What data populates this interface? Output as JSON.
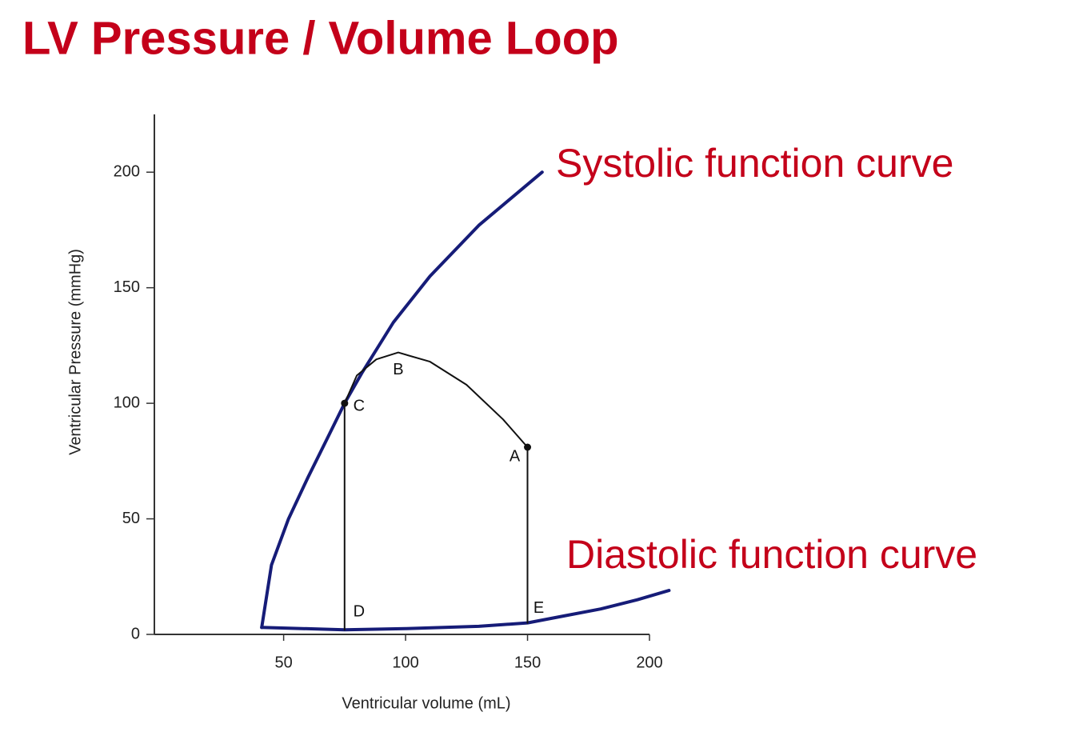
{
  "chart_data": {
    "type": "line",
    "title": "LV Pressure / Volume Loop",
    "x_label": "Ventricular volume (mL)",
    "y_label": "Ventricular Pressure (mmHg)",
    "xlim": [
      -3,
      200
    ],
    "ylim": [
      0,
      225
    ],
    "xticks": [
      50,
      100,
      150,
      200
    ],
    "yticks": [
      0,
      50,
      100,
      150,
      200
    ],
    "series": [
      {
        "name": "Systolic function curve",
        "color": "#161c78",
        "x": [
          41,
          45,
          52,
          60,
          68,
          75,
          82,
          95,
          110,
          130,
          156
        ],
        "values": [
          3,
          30,
          50,
          68,
          85,
          100,
          113,
          135,
          155,
          177,
          200
        ]
      },
      {
        "name": "Diastolic function curve",
        "color": "#161c78",
        "x": [
          41,
          75,
          100,
          130,
          150,
          165,
          180,
          195,
          208
        ],
        "values": [
          3,
          2,
          2.5,
          3.5,
          5,
          8,
          11,
          15,
          19
        ]
      },
      {
        "color": "#111111",
        "x": [
          75,
          80,
          88,
          97,
          110,
          125,
          140,
          150
        ],
        "values": [
          100,
          112,
          119,
          122,
          118,
          108,
          93,
          81
        ]
      },
      {
        "color": "#111111",
        "x": [
          75,
          75
        ],
        "values": [
          100,
          2
        ]
      },
      {
        "color": "#111111",
        "x": [
          150,
          150
        ],
        "values": [
          81,
          5
        ]
      }
    ],
    "annotations": [
      {
        "label": "A",
        "x": 150,
        "y": 81,
        "marker": true
      },
      {
        "label": "B",
        "x": 97,
        "y": 122,
        "marker": false
      },
      {
        "label": "C",
        "x": 75,
        "y": 100,
        "marker": true
      },
      {
        "label": "D",
        "x": 75,
        "y": 2,
        "marker": false
      },
      {
        "label": "E",
        "x": 150,
        "y": 5,
        "marker": false
      }
    ],
    "label_color": "#c4001a"
  }
}
